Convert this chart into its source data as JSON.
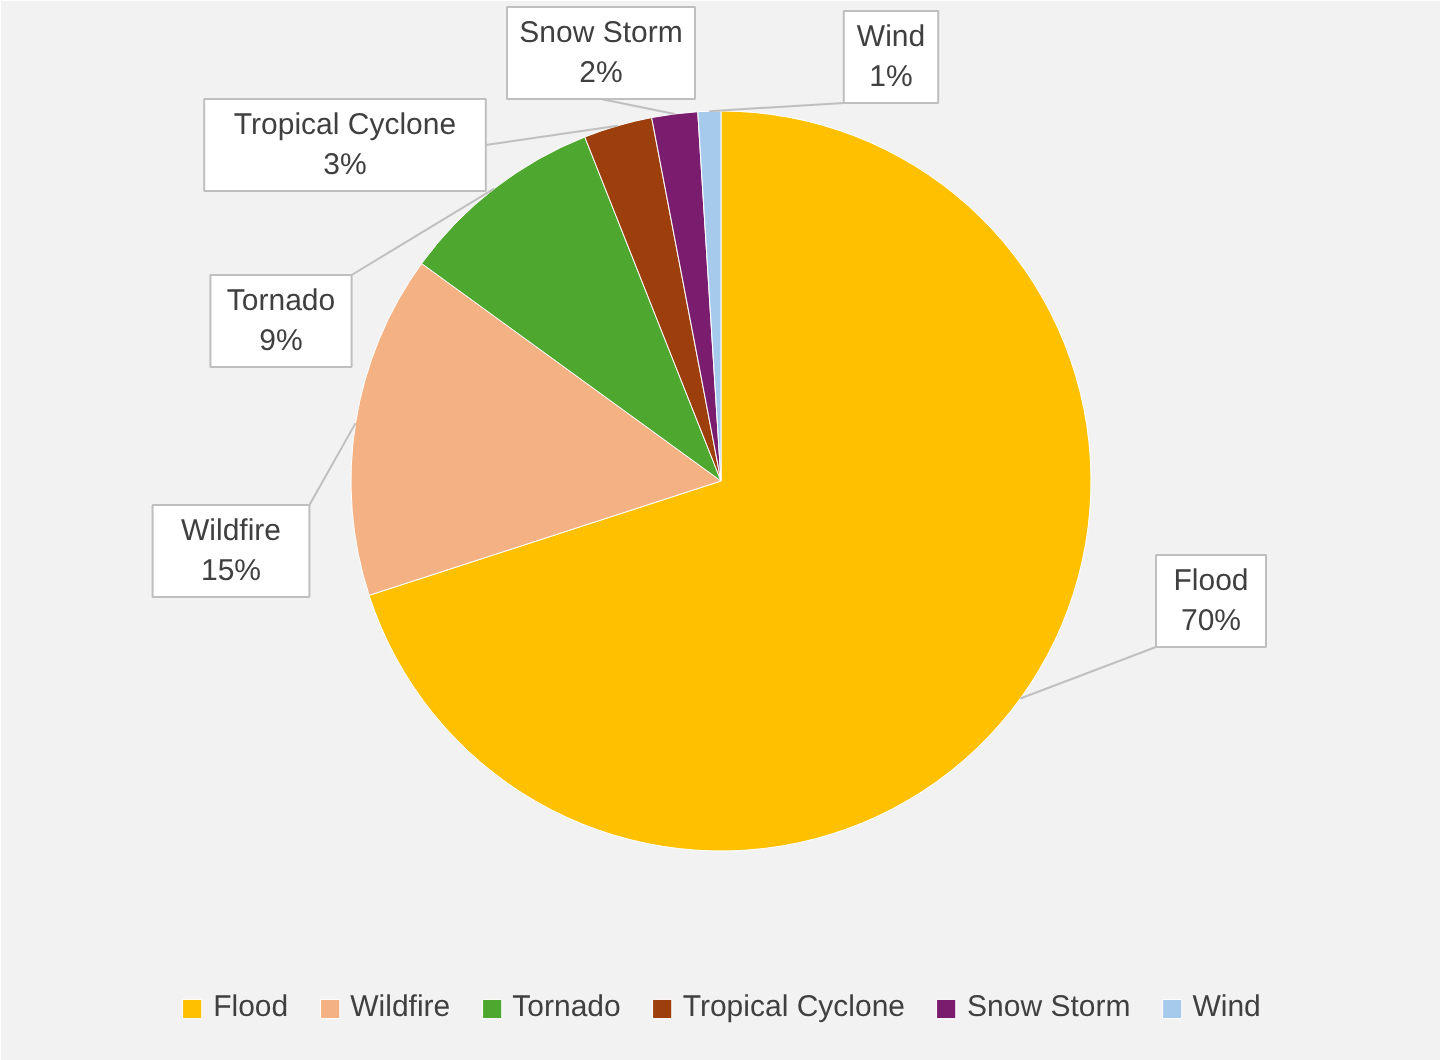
{
  "chart_data": {
    "type": "pie",
    "categories": [
      "Flood",
      "Wildfire",
      "Tornado",
      "Tropical Cyclone",
      "Snow Storm",
      "Wind"
    ],
    "values": [
      70,
      15,
      9,
      3,
      2,
      1
    ],
    "colors": [
      "#ffc000",
      "#f4b183",
      "#4ea72e",
      "#9c3f0c",
      "#7a1d6e",
      "#a6caec"
    ],
    "value_labels": [
      "70%",
      "15%",
      "9%",
      "3%",
      "2%",
      "1%"
    ],
    "legend": "bottom"
  }
}
